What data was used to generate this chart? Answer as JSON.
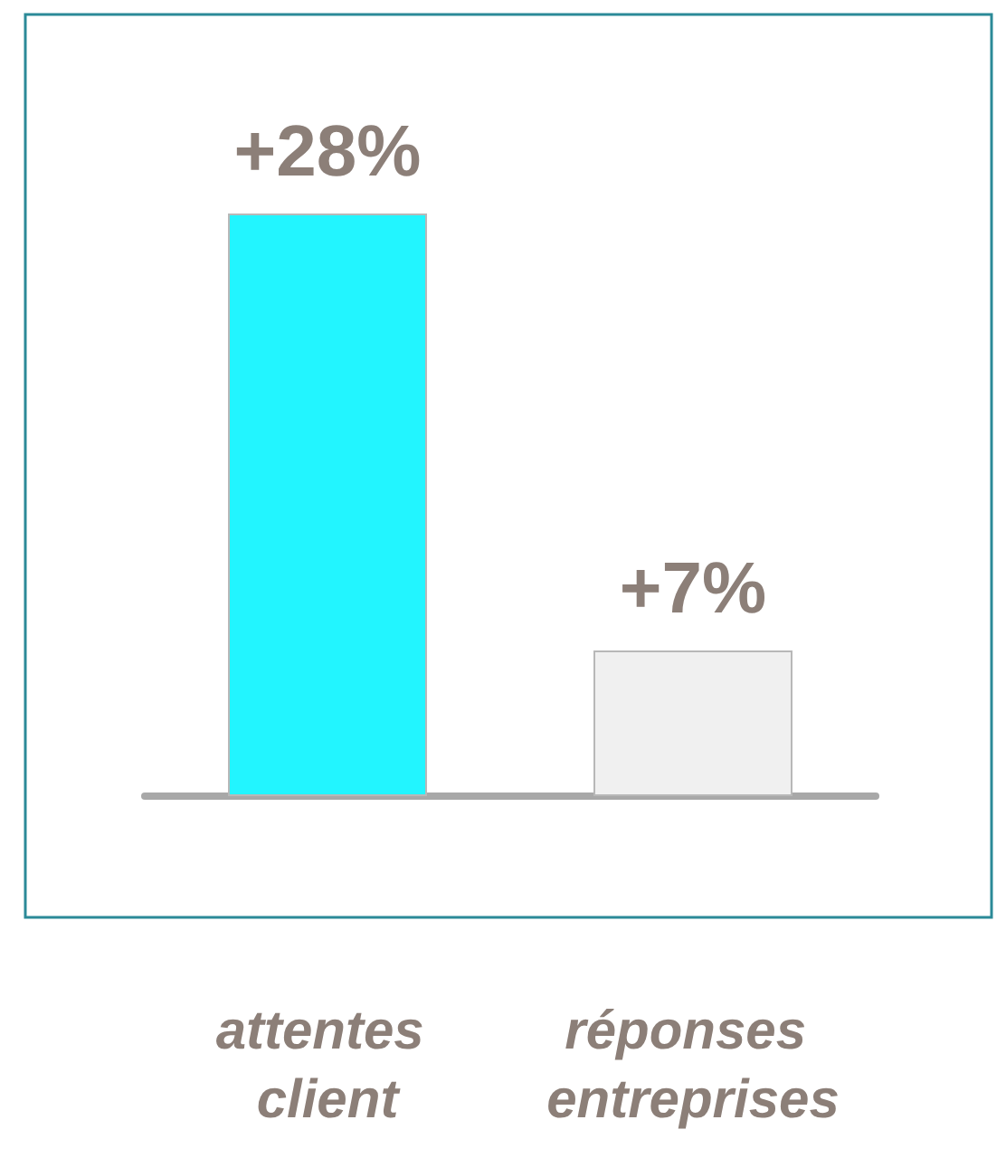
{
  "chart_data": {
    "type": "bar",
    "categories": [
      "attentes client",
      "réponses entreprises"
    ],
    "values": [
      28,
      7
    ],
    "colors": [
      "#22f5ff",
      "#f0f0f0"
    ],
    "value_labels": [
      "+28%",
      "+7%"
    ],
    "grid": false
  }
}
